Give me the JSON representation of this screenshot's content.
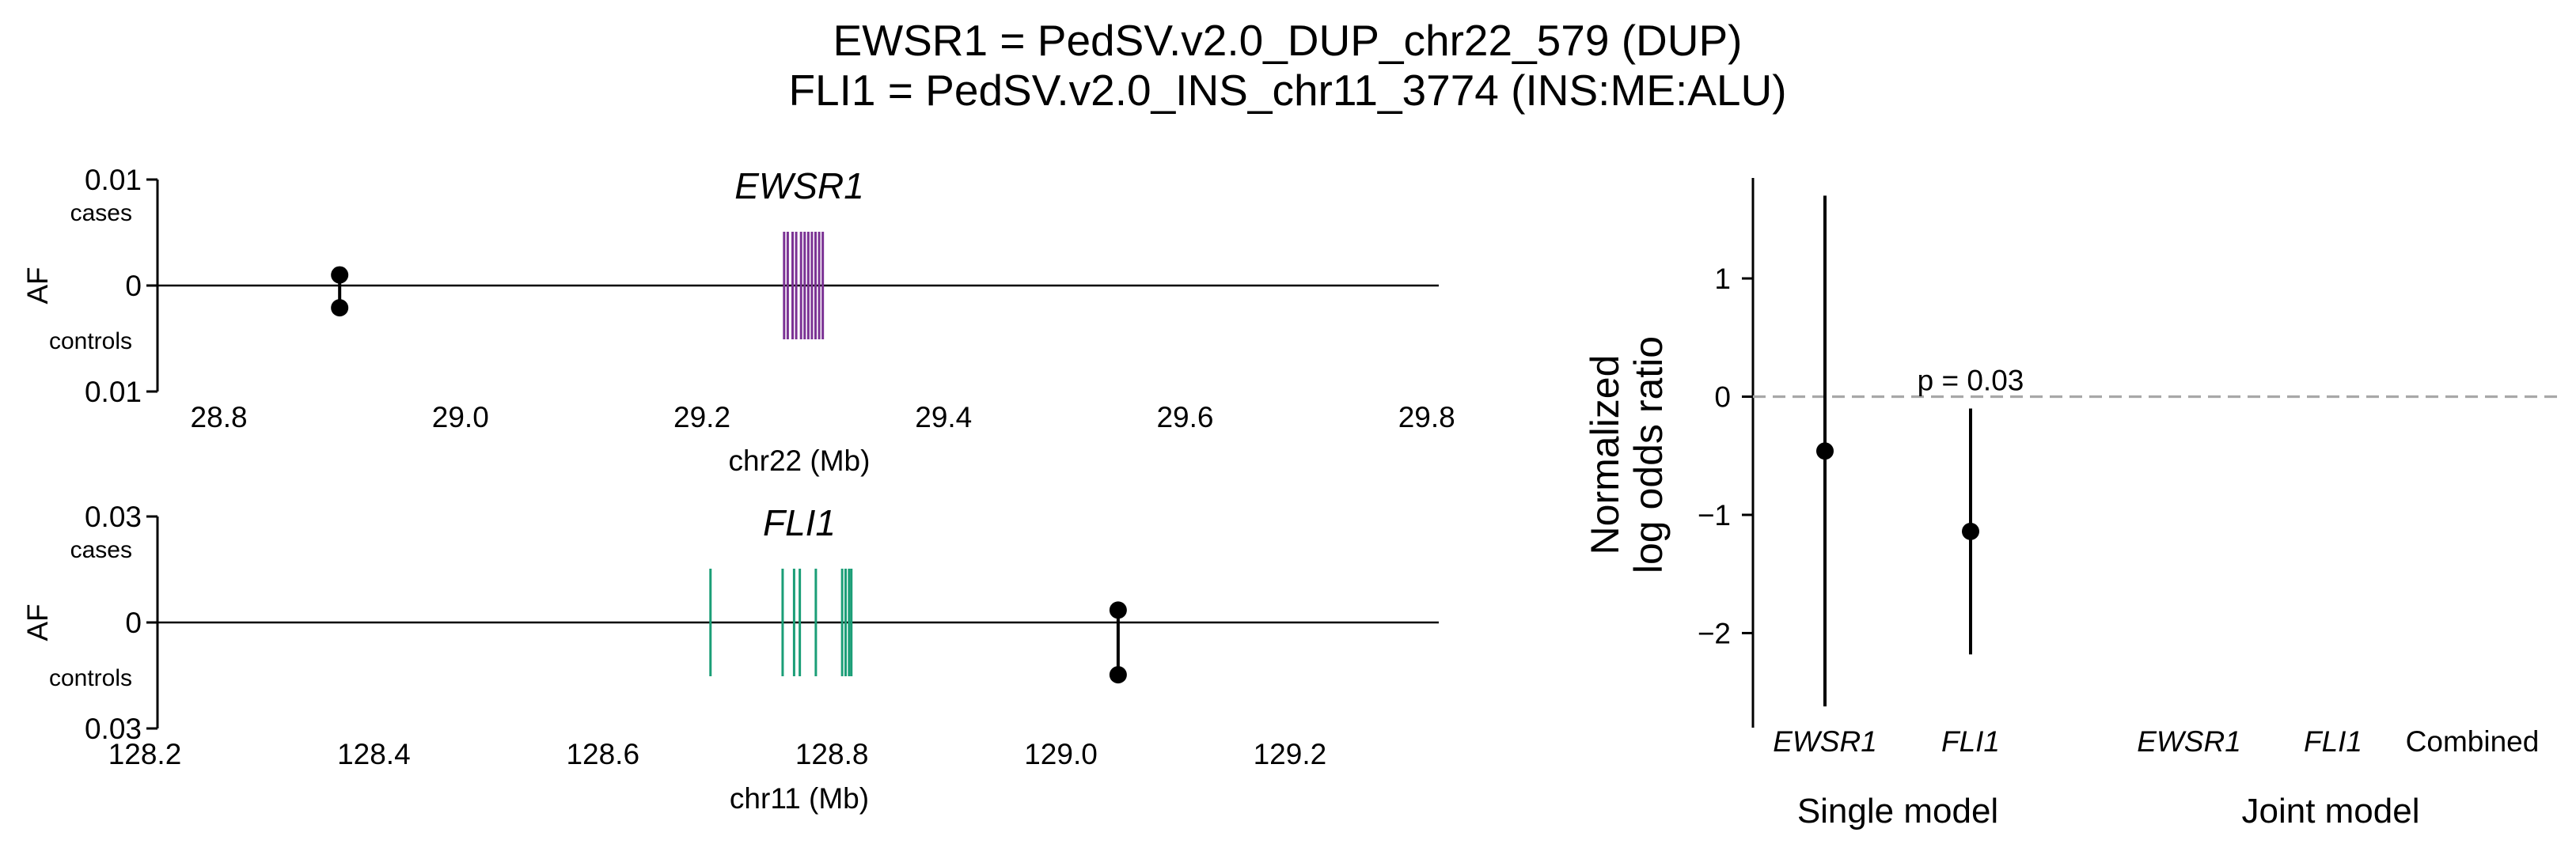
{
  "title_lines": [
    "EWSR1 = PedSV.v2.0_DUP_chr22_579 (DUP)",
    "FLI1 = PedSV.v2.0_INS_chr11_3774 (INS:ME:ALU)"
  ],
  "chart_data": [
    {
      "type": "scatter",
      "panel": "gene-track",
      "gene": "EWSR1",
      "gene_color": "#7b3294",
      "xlabel": "chr22 (Mb)",
      "ylabel": "AF",
      "xlim": [
        28.74,
        29.81
      ],
      "x_ticks": [
        "28.8",
        "29.0",
        "29.2",
        "29.4",
        "29.6",
        "29.8"
      ],
      "x_tick_values": [
        28.8,
        29.0,
        29.2,
        29.4,
        29.6,
        29.8
      ],
      "y_max": 0.01,
      "y_top_label": "0.01",
      "y_zero_label": "0",
      "y_bottom_label": "0.01",
      "cases_label": "cases",
      "controls_label": "controls",
      "exons_mb": [
        29.268,
        29.271,
        29.275,
        29.278,
        29.282,
        29.285,
        29.288,
        29.291,
        29.294,
        29.297,
        29.3
      ],
      "variant": {
        "position_mb": 28.9,
        "af_cases": 0.001,
        "af_controls": -0.0021
      }
    },
    {
      "type": "scatter",
      "panel": "gene-track",
      "gene": "FLI1",
      "gene_color": "#1b9e77",
      "xlabel": "chr11 (Mb)",
      "ylabel": "AF",
      "xlim": [
        128.2,
        129.33
      ],
      "x_ticks": [
        "128.2",
        "128.4",
        "128.6",
        "128.8",
        "129.0",
        "129.2"
      ],
      "x_tick_values": [
        128.2,
        128.4,
        128.6,
        128.8,
        129.0,
        129.2
      ],
      "y_max": 0.03,
      "y_top_label": "0.03",
      "y_zero_label": "0",
      "y_bottom_label": "0.03",
      "cases_label": "cases",
      "controls_label": "controls",
      "exons_mb": [
        128.694,
        128.757,
        128.767,
        128.772,
        128.786,
        128.809,
        128.812,
        128.815,
        128.817
      ],
      "variant": {
        "position_mb": 129.05,
        "af_cases": 0.0035,
        "af_controls": -0.0148
      }
    },
    {
      "type": "scatter",
      "panel": "forest",
      "ylabel_lines": [
        "Normalized",
        "log odds ratio"
      ],
      "ylim": [
        -2.8,
        1.85
      ],
      "y_ticks": [
        1,
        0,
        -1,
        -2
      ],
      "y_tick_labels": [
        "1",
        "0",
        "−1",
        "−2"
      ],
      "categories": [
        "EWSR1",
        "FLI1",
        "EWSR1",
        "FLI1",
        "Combined"
      ],
      "groups": [
        {
          "label": "Single model",
          "category_indices": [
            0,
            1
          ]
        },
        {
          "label": "Joint model",
          "category_indices": [
            2,
            3,
            4
          ]
        }
      ],
      "points": [
        {
          "category_index": 0,
          "estimate": -0.46,
          "lower": -2.62,
          "upper": 1.7
        },
        {
          "category_index": 1,
          "estimate": -1.14,
          "lower": -2.18,
          "upper": -0.1
        }
      ],
      "reference_line": 0,
      "annotation": {
        "text": "p = 0.03",
        "category_index": 1
      }
    }
  ]
}
